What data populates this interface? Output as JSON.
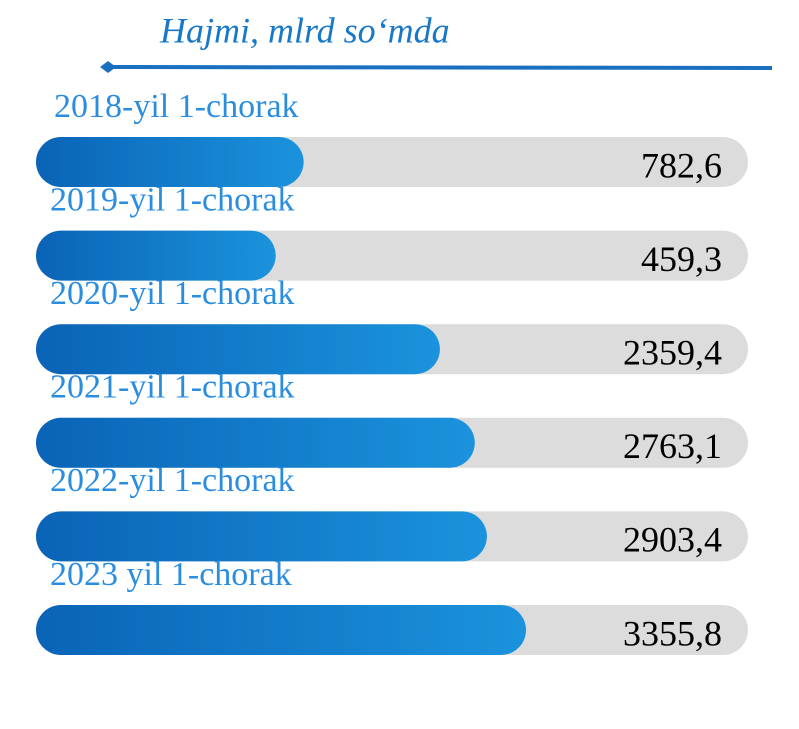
{
  "chart_data": {
    "type": "bar",
    "orientation": "horizontal",
    "title": "Hajmi, mlrd so‘mda",
    "categories": [
      "2018-yil 1-chorak",
      "2019-yil 1-chorak",
      "2020-yil 1-chorak",
      "2021-yil 1-chorak",
      "2022-yil 1-chorak",
      "2023 yil 1-chorak"
    ],
    "values": [
      782.6,
      459.3,
      2359.4,
      2763.1,
      2903.4,
      3355.8
    ],
    "value_labels": [
      "782,6",
      "459,3",
      "2359,4",
      "2763,1",
      "2903,4",
      "3355,8"
    ],
    "color": "#1278c8"
  }
}
